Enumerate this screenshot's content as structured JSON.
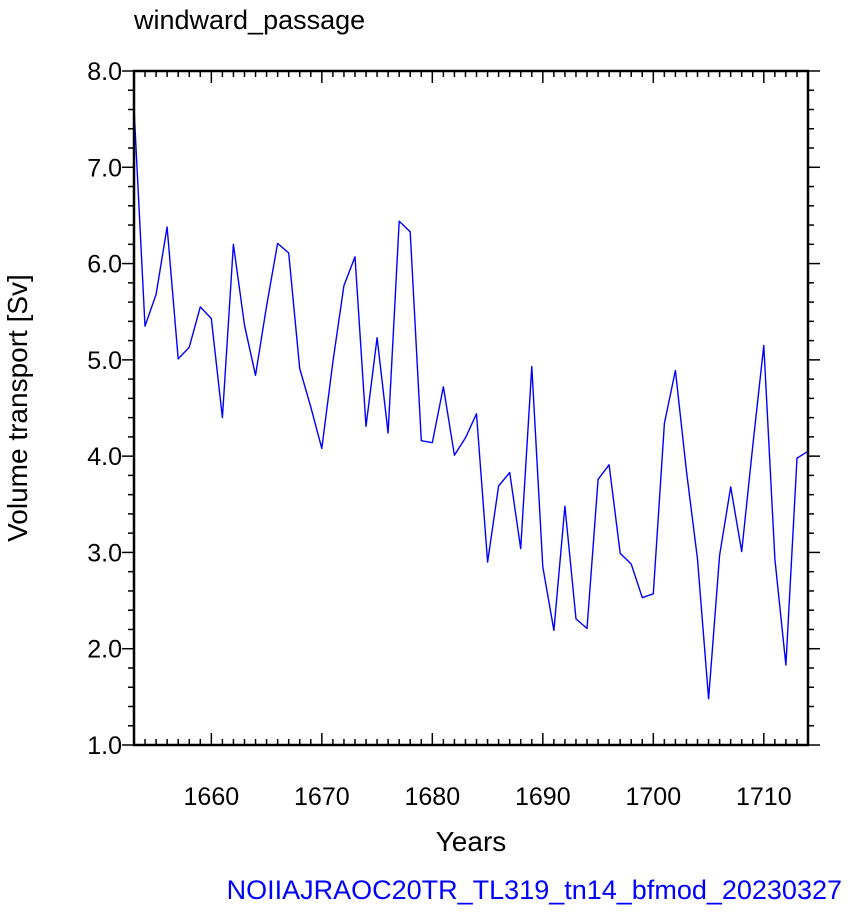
{
  "chart_data": {
    "type": "line",
    "title": "windward_passage",
    "xlabel": "Years",
    "ylabel": "Volume transport [Sv]",
    "footer": "NOIIAJRAOC20TR_TL319_tn14_bfmod_20230327",
    "xlim": [
      1653,
      1714
    ],
    "ylim": [
      1.0,
      8.0
    ],
    "x_ticks": [
      1660,
      1670,
      1680,
      1690,
      1700,
      1710
    ],
    "y_ticks": [
      1.0,
      2.0,
      3.0,
      4.0,
      5.0,
      6.0,
      7.0,
      8.0
    ],
    "y_tick_labels": [
      "1.0",
      "2.0",
      "3.0",
      "4.0",
      "5.0",
      "6.0",
      "7.0",
      "8.0"
    ],
    "grid": false,
    "series": [
      {
        "color": "#0000ff",
        "x": [
          1653,
          1654,
          1655,
          1656,
          1657,
          1658,
          1659,
          1660,
          1661,
          1662,
          1663,
          1664,
          1665,
          1666,
          1667,
          1668,
          1669,
          1670,
          1671,
          1672,
          1673,
          1674,
          1675,
          1676,
          1677,
          1678,
          1679,
          1680,
          1681,
          1682,
          1683,
          1684,
          1685,
          1686,
          1687,
          1688,
          1689,
          1690,
          1691,
          1692,
          1693,
          1694,
          1695,
          1696,
          1697,
          1698,
          1699,
          1700,
          1701,
          1702,
          1703,
          1704,
          1705,
          1706,
          1707,
          1708,
          1709,
          1710,
          1711,
          1712,
          1713,
          1714
        ],
        "values": [
          7.62,
          5.35,
          5.68,
          6.38,
          5.01,
          5.13,
          5.55,
          5.43,
          4.4,
          6.2,
          5.36,
          4.84,
          5.56,
          6.21,
          6.11,
          4.91,
          4.51,
          4.08,
          4.98,
          5.77,
          6.07,
          4.31,
          5.23,
          4.24,
          6.44,
          6.33,
          4.16,
          4.14,
          4.72,
          4.01,
          4.19,
          4.44,
          2.9,
          3.69,
          3.83,
          3.04,
          4.93,
          2.85,
          2.19,
          3.48,
          2.31,
          2.21,
          3.76,
          3.91,
          2.99,
          2.88,
          2.53,
          2.57,
          4.34,
          4.89,
          3.84,
          2.93,
          1.48,
          2.97,
          3.68,
          3.01,
          4.11,
          5.15,
          2.93,
          1.83,
          3.98,
          4.05
        ]
      }
    ]
  },
  "colors": {
    "line": "#0000ff",
    "footer": "#0000ff",
    "axes": "#000000"
  }
}
